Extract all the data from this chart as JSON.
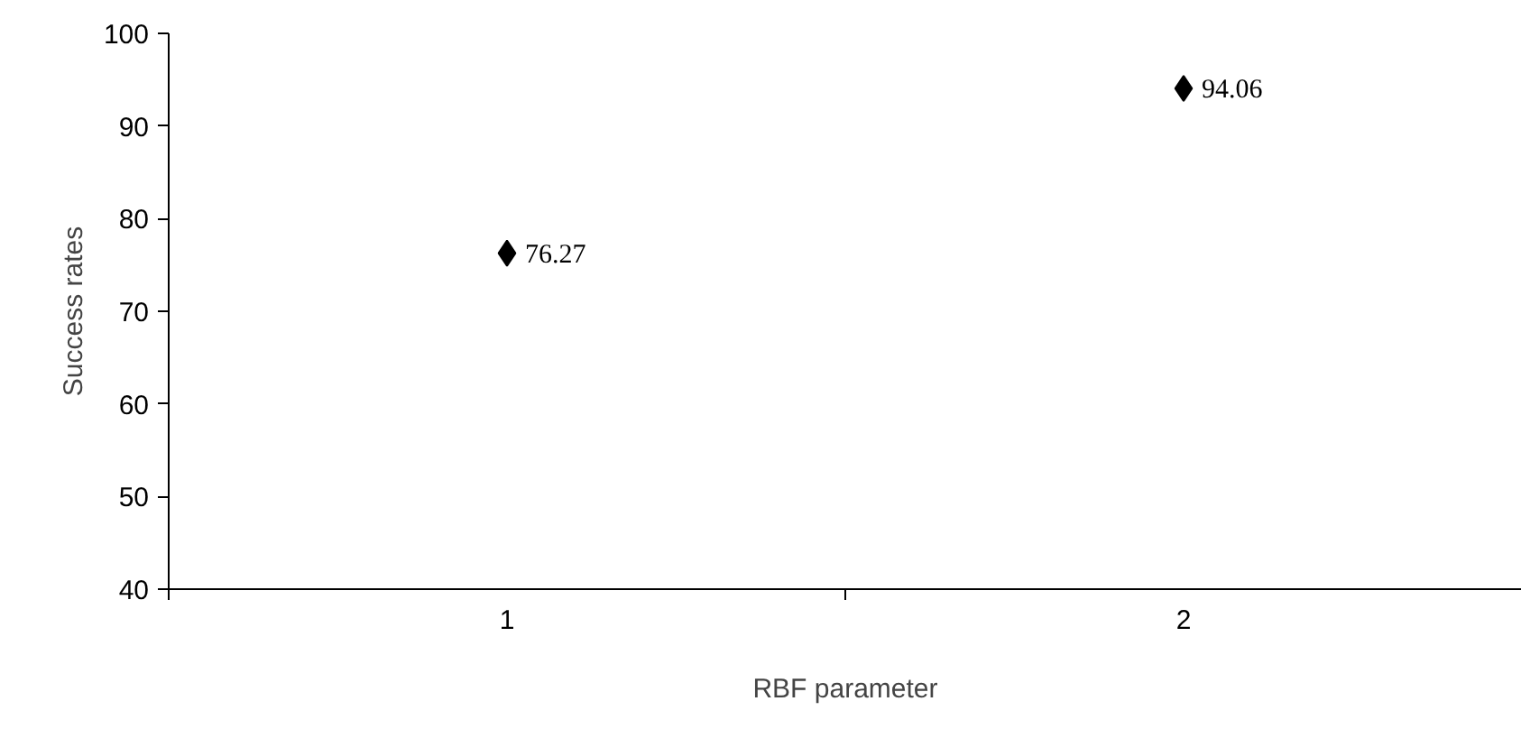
{
  "chart_data": {
    "type": "scatter",
    "xlabel": "RBF parameter",
    "ylabel": "Success rates",
    "categories": [
      "1",
      "2"
    ],
    "series": [
      {
        "color": "#000000",
        "values": [
          76.27,
          94.06
        ]
      }
    ],
    "marker": "diamond",
    "data_labels": true,
    "ylim": [
      40,
      100
    ],
    "yticks": [
      40,
      50,
      60,
      70,
      80,
      90,
      100
    ],
    "grid": false
  }
}
